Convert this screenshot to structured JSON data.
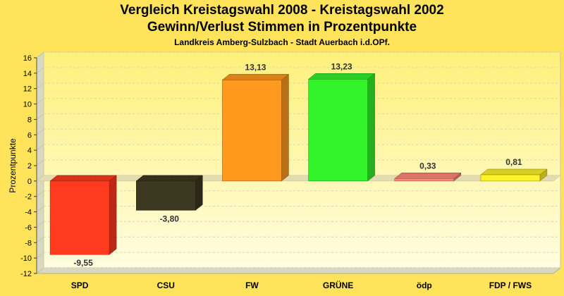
{
  "chart_data": {
    "type": "bar",
    "title": "Vergleich Kreistagswahl 2008 - Kreistagswahl 2002",
    "subtitle": "Gewinn/Verlust Stimmen in Prozentpunkte",
    "subsubtitle": "Landkreis Amberg-Sulzbach - Stadt Auerbach i.d.OPf.",
    "xlabel": "",
    "ylabel": "Prozentpunkte",
    "ylim": [
      -12,
      16
    ],
    "yticks": [
      -12,
      -10,
      -8,
      -6,
      -4,
      -2,
      0,
      2,
      4,
      6,
      8,
      10,
      12,
      14,
      16
    ],
    "grid": true,
    "categories": [
      "SPD",
      "CSU",
      "FW",
      "GRÜNE",
      "ödp",
      "FDP / FWS"
    ],
    "values": [
      -9.55,
      -3.8,
      13.13,
      13.23,
      0.33,
      0.81
    ],
    "value_labels": [
      "-9,55",
      "-3,80",
      "13,13",
      "13,23",
      "0,33",
      "0,81"
    ],
    "colors": [
      "#ff3a1e",
      "#3d3820",
      "#ff9a1e",
      "#33f42a",
      "#ff8a7a",
      "#fff22a"
    ]
  }
}
